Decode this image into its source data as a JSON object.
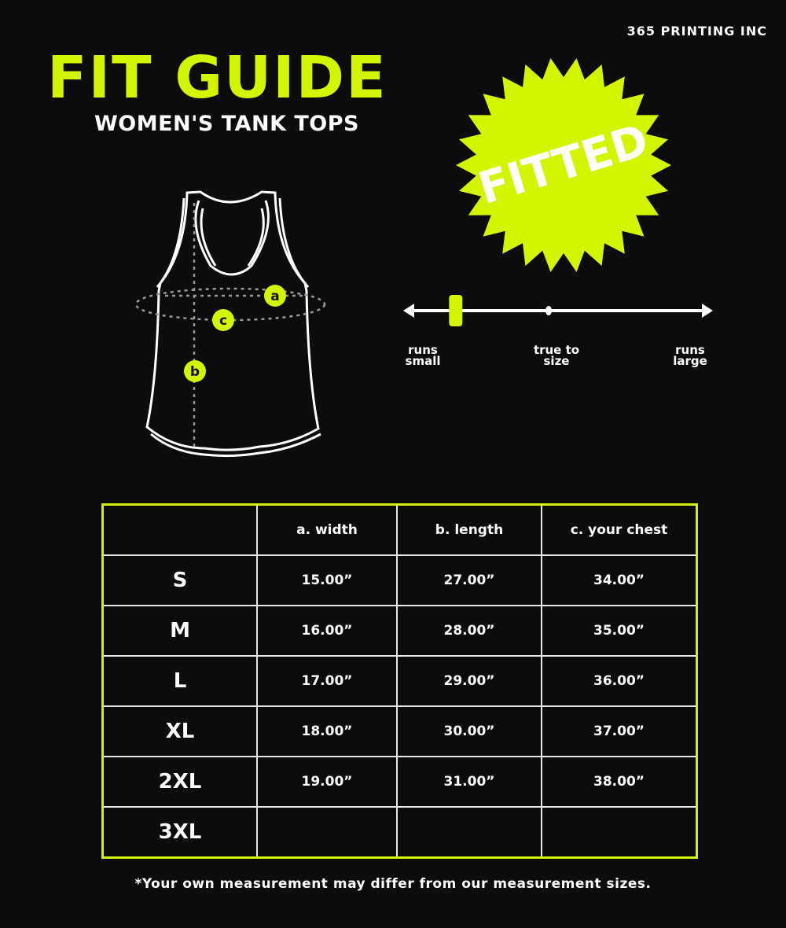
{
  "brand": "365 PRINTING INC",
  "title": "FIT GUIDE",
  "subtitle": "WOMEN'S TANK TOPS",
  "badge": "FITTED",
  "diagram_markers": [
    "a",
    "c",
    "b"
  ],
  "fit_scale": {
    "labels": {
      "small": [
        "runs",
        "small"
      ],
      "true": [
        "true to",
        "size"
      ],
      "large": [
        "runs",
        "large"
      ]
    },
    "fit_level": 0.16
  },
  "colors": {
    "accent": "#d4f500",
    "background": "#0c0c0c"
  },
  "table": {
    "headers": [
      "",
      "a. width",
      "b. length",
      "c. your chest"
    ],
    "rows": [
      [
        "S",
        "15.00”",
        "27.00”",
        "34.00”"
      ],
      [
        "M",
        "16.00”",
        "28.00”",
        "35.00”"
      ],
      [
        "L",
        "17.00”",
        "29.00”",
        "36.00”"
      ],
      [
        "XL",
        "18.00”",
        "30.00”",
        "37.00”"
      ],
      [
        "2XL",
        "19.00”",
        "31.00”",
        "38.00”"
      ],
      [
        "3XL",
        "",
        "",
        ""
      ]
    ]
  },
  "note": "*Your own measurement may differ from our measurement sizes."
}
